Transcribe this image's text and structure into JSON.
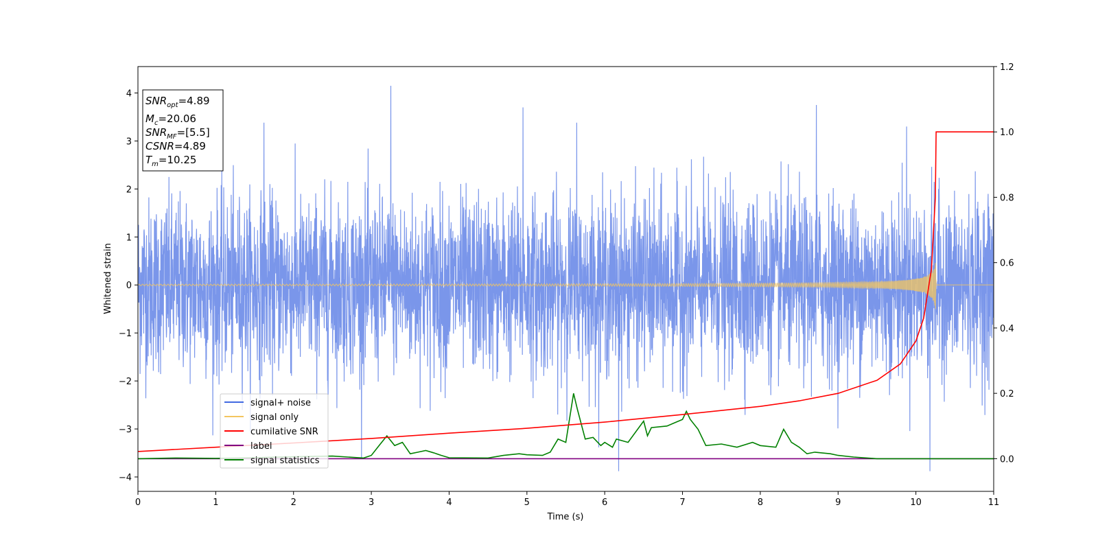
{
  "chart_data": {
    "type": "line",
    "xlabel": "Time (s)",
    "ylabel": "Whitened strain",
    "xlim": [
      0,
      11
    ],
    "ylim": [
      -4.3,
      4.55
    ],
    "y2lim": [
      -0.1,
      1.2
    ],
    "xticks": [
      "0",
      "1",
      "2",
      "3",
      "4",
      "5",
      "6",
      "7",
      "8",
      "9",
      "10",
      "11"
    ],
    "yticks": [
      "4",
      "3",
      "2",
      "1",
      "0",
      "−1",
      "−2",
      "−3",
      "−4"
    ],
    "y2ticks": [
      "1.2",
      "1.0",
      "0.8",
      "0.6",
      "0.4",
      "0.2",
      "0.0"
    ],
    "grid": false,
    "legend_position": "lower-left",
    "annotation": {
      "lines": [
        {
          "sym": "SNR",
          "sub": "opt",
          "value": "=4.89"
        },
        {
          "sym": "M",
          "sub": "c",
          "value": "=20.06"
        },
        {
          "sym": "SNR",
          "sub": "MF",
          "value": "=[5.5]"
        },
        {
          "sym": "CSNR",
          "sub": "",
          "value": "=4.89"
        },
        {
          "sym": "T",
          "sub": "m",
          "value": "=10.25"
        }
      ]
    },
    "series": [
      {
        "name": "signal+ noise",
        "axis": "left",
        "color": "#4169E1",
        "noise_sigma": 0.9,
        "note_values": "dense noise, about ±2.5 typical, spikes to ±4",
        "spikes": [
          [
            3.25,
            4.15
          ],
          [
            6.18,
            -3.88
          ],
          [
            10.18,
            -3.88
          ],
          [
            8.72,
            3.75
          ],
          [
            5.64,
            3.38
          ],
          [
            4.95,
            3.7
          ],
          [
            9.88,
            3.3
          ],
          [
            1.62,
            3.38
          ]
        ]
      },
      {
        "name": "signal only",
        "axis": "left",
        "color": "#F4C55F",
        "chirp_end": 10.26,
        "peak_amplitude": 1.0
      },
      {
        "name": "cumilative SNR",
        "axis": "right",
        "color": "#FF0000",
        "x": [
          0,
          1,
          2,
          3,
          4,
          5,
          6,
          7,
          8,
          8.5,
          9,
          9.5,
          9.8,
          10,
          10.1,
          10.2,
          10.25,
          10.26,
          11
        ],
        "y": [
          0.022,
          0.035,
          0.048,
          0.062,
          0.078,
          0.093,
          0.112,
          0.135,
          0.16,
          0.177,
          0.2,
          0.24,
          0.29,
          0.36,
          0.43,
          0.58,
          0.8,
          1.0,
          1.0
        ]
      },
      {
        "name": "label",
        "axis": "right",
        "color": "#800080",
        "x": [
          0,
          11
        ],
        "y": [
          0,
          0
        ]
      },
      {
        "name": "signal statistics",
        "axis": "right",
        "color": "#008000",
        "x": [
          0,
          0.5,
          1.0,
          1.5,
          2.0,
          2.5,
          2.9,
          3.0,
          3.1,
          3.2,
          3.3,
          3.4,
          3.5,
          3.6,
          3.7,
          3.8,
          3.9,
          4.0,
          4.5,
          4.7,
          4.9,
          5.0,
          5.2,
          5.3,
          5.4,
          5.5,
          5.6,
          5.65,
          5.75,
          5.85,
          5.95,
          6.0,
          6.1,
          6.15,
          6.3,
          6.5,
          6.55,
          6.6,
          6.8,
          6.9,
          7.0,
          7.05,
          7.1,
          7.2,
          7.3,
          7.5,
          7.7,
          7.9,
          8.0,
          8.2,
          8.3,
          8.4,
          8.5,
          8.6,
          8.7,
          8.9,
          9.0,
          9.2,
          9.5,
          10,
          11
        ],
        "y": [
          0.0,
          0.002,
          0.001,
          0.003,
          0.006,
          0.008,
          0.002,
          0.01,
          0.04,
          0.07,
          0.04,
          0.05,
          0.015,
          0.02,
          0.025,
          0.018,
          0.01,
          0.003,
          0.002,
          0.01,
          0.015,
          0.012,
          0.01,
          0.02,
          0.06,
          0.05,
          0.2,
          0.15,
          0.06,
          0.065,
          0.04,
          0.05,
          0.035,
          0.06,
          0.05,
          0.115,
          0.07,
          0.095,
          0.1,
          0.11,
          0.12,
          0.145,
          0.12,
          0.09,
          0.04,
          0.045,
          0.035,
          0.05,
          0.04,
          0.035,
          0.09,
          0.05,
          0.035,
          0.015,
          0.02,
          0.015,
          0.01,
          0.005,
          0.0,
          0.0,
          0.0
        ]
      }
    ]
  }
}
